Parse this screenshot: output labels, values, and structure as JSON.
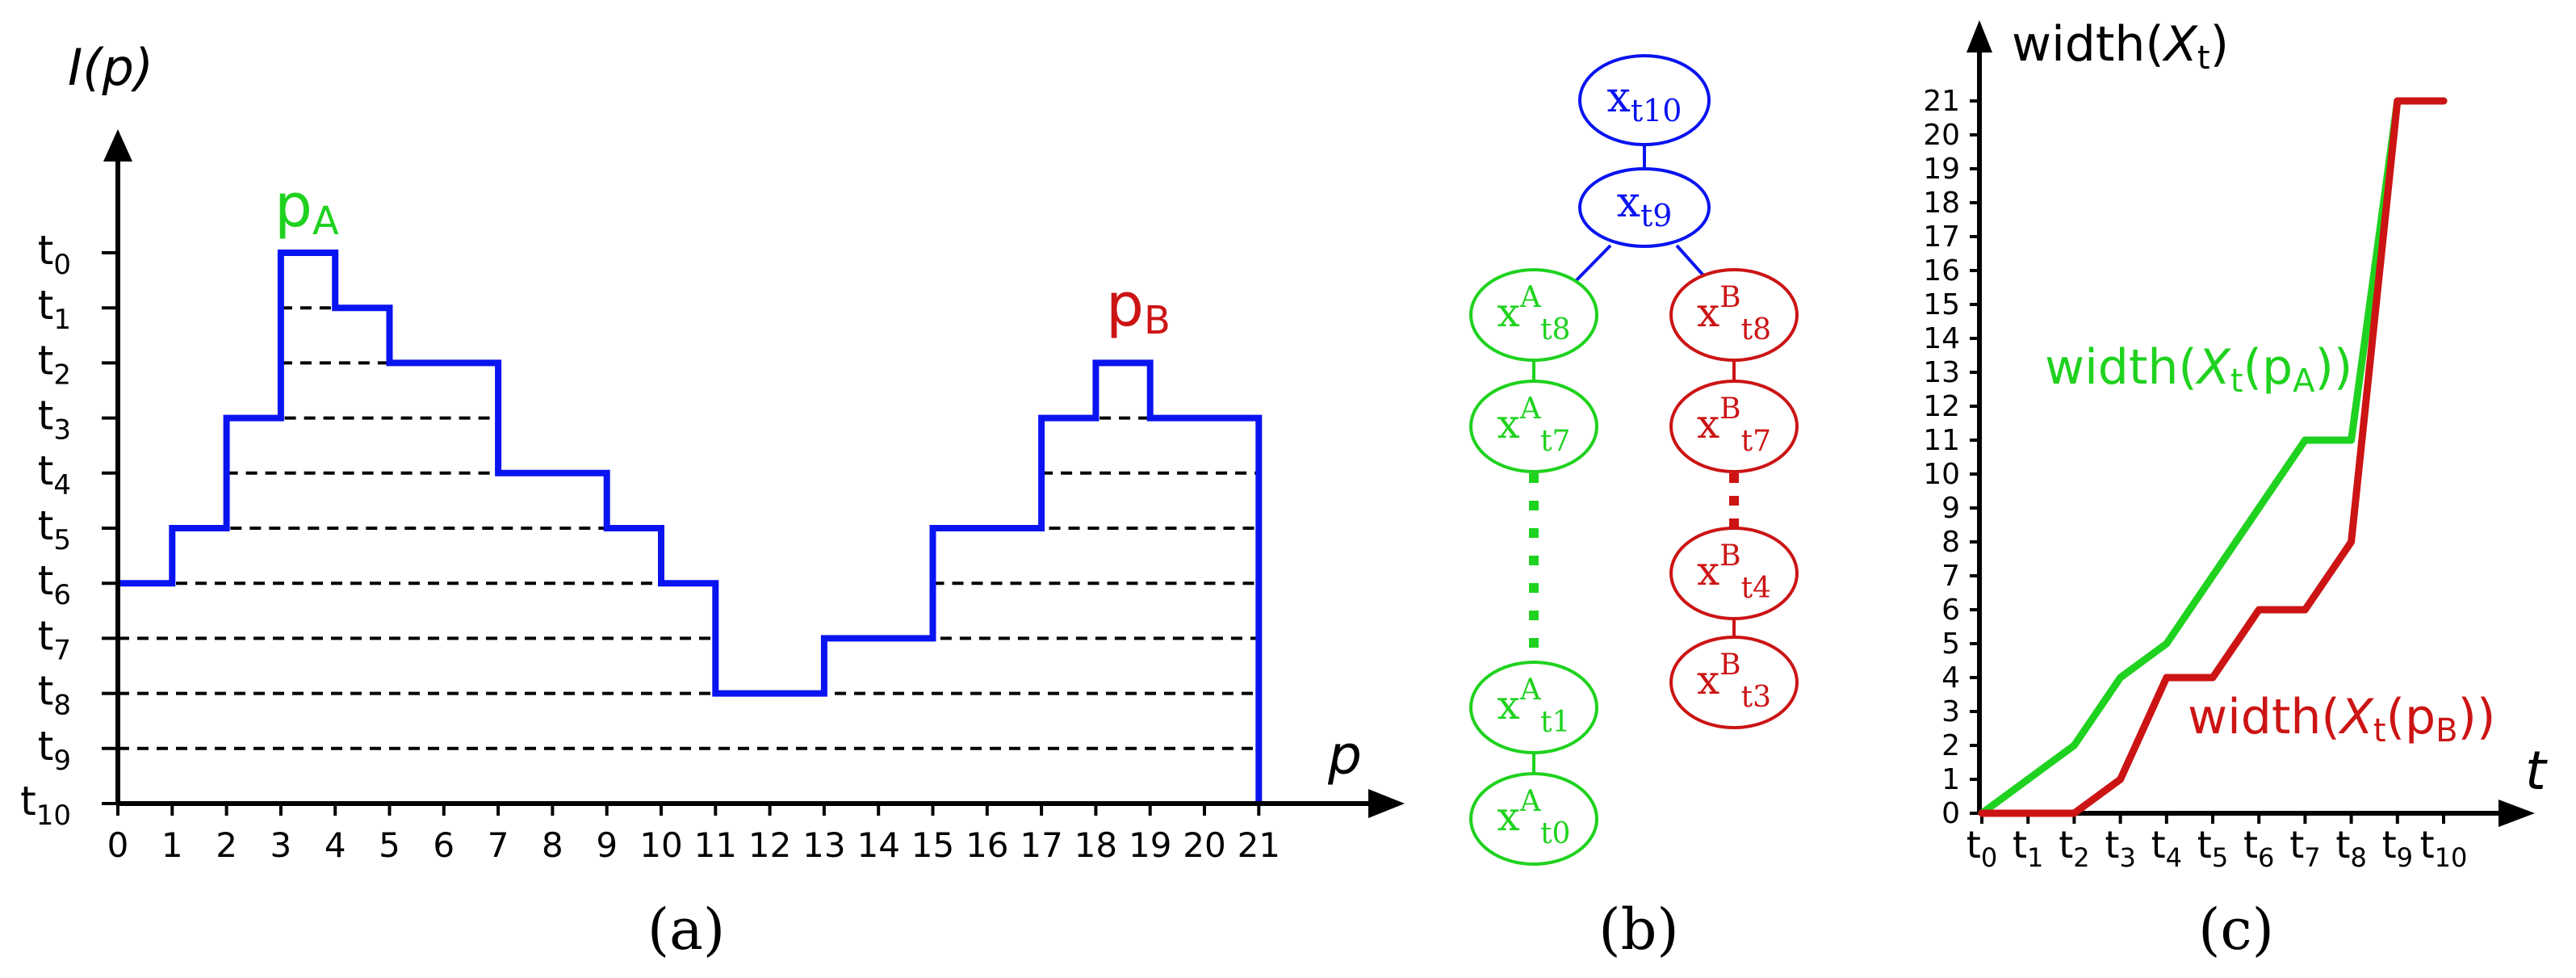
{
  "colors": {
    "blue": "#0a14f0",
    "green": "#1fd21f",
    "red": "#cc1414",
    "black": "#000000"
  },
  "panel_a": {
    "ylabel": "I(p)",
    "xlabel": "p",
    "peak_a_base": "p",
    "peak_a_sub": "A",
    "peak_b_base": "p",
    "peak_b_sub": "B",
    "x_ticks": [
      "0",
      "1",
      "2",
      "3",
      "4",
      "5",
      "6",
      "7",
      "8",
      "9",
      "10",
      "11",
      "12",
      "13",
      "14",
      "15",
      "16",
      "17",
      "18",
      "19",
      "20",
      "21"
    ],
    "t_levels": [
      {
        "base": "t",
        "sub": "0"
      },
      {
        "base": "t",
        "sub": "1"
      },
      {
        "base": "t",
        "sub": "2"
      },
      {
        "base": "t",
        "sub": "3"
      },
      {
        "base": "t",
        "sub": "4"
      },
      {
        "base": "t",
        "sub": "5"
      },
      {
        "base": "t",
        "sub": "6"
      },
      {
        "base": "t",
        "sub": "7"
      },
      {
        "base": "t",
        "sub": "8"
      },
      {
        "base": "t",
        "sub": "9"
      },
      {
        "base": "t",
        "sub": "10"
      }
    ],
    "profile_x": [
      0,
      1,
      2,
      3,
      4,
      5,
      7,
      9,
      10,
      11,
      13,
      15,
      17,
      18,
      19,
      21
    ],
    "profile_level": [
      6,
      5,
      3,
      0,
      1,
      2,
      4,
      5,
      6,
      8,
      7,
      5,
      3,
      2,
      3,
      10
    ],
    "caption": "(a)"
  },
  "panel_b": {
    "top_nodes": [
      {
        "base": "x",
        "sup": "",
        "sub": "t10"
      },
      {
        "base": "x",
        "sup": "",
        "sub": "t9"
      }
    ],
    "green_nodes": [
      {
        "base": "x",
        "sup": "A",
        "sub": "t8"
      },
      {
        "base": "x",
        "sup": "A",
        "sub": "t7"
      },
      {
        "base": "x",
        "sup": "A",
        "sub": "t1"
      },
      {
        "base": "x",
        "sup": "A",
        "sub": "t0"
      }
    ],
    "red_nodes": [
      {
        "base": "x",
        "sup": "B",
        "sub": "t8"
      },
      {
        "base": "x",
        "sup": "B",
        "sub": "t7"
      },
      {
        "base": "x",
        "sup": "B",
        "sub": "t4"
      },
      {
        "base": "x",
        "sup": "B",
        "sub": "t3"
      }
    ],
    "caption": "(b)"
  },
  "panel_c": {
    "ylabel_pre": "width(",
    "ylabel_var": "X",
    "ylabel_sub": "t",
    "ylabel_post": ")",
    "xlabel": "t",
    "y_ticks": [
      "0",
      "1",
      "2",
      "3",
      "4",
      "5",
      "6",
      "7",
      "8",
      "9",
      "10",
      "11",
      "12",
      "13",
      "14",
      "15",
      "16",
      "17",
      "18",
      "19",
      "20",
      "21"
    ],
    "x_ticks": [
      {
        "base": "t",
        "sub": "0"
      },
      {
        "base": "t",
        "sub": "1"
      },
      {
        "base": "t",
        "sub": "2"
      },
      {
        "base": "t",
        "sub": "3"
      },
      {
        "base": "t",
        "sub": "4"
      },
      {
        "base": "t",
        "sub": "5"
      },
      {
        "base": "t",
        "sub": "6"
      },
      {
        "base": "t",
        "sub": "7"
      },
      {
        "base": "t",
        "sub": "8"
      },
      {
        "base": "t",
        "sub": "9"
      },
      {
        "base": "t",
        "sub": "10"
      }
    ],
    "series_a": {
      "pre": "width(",
      "var": "X",
      "sub": "t",
      "mid": "(p",
      "sub2": "A",
      "post": "))"
    },
    "series_b": {
      "pre": "width(",
      "var": "X",
      "sub": "t",
      "mid": "(p",
      "sub2": "B",
      "post": "))"
    },
    "caption": "(c)"
  },
  "chart_data": {
    "type": "line",
    "x": [
      "t0",
      "t1",
      "t2",
      "t3",
      "t4",
      "t5",
      "t6",
      "t7",
      "t8",
      "t9",
      "t10"
    ],
    "ylabel": "width(Xt)",
    "xlabel": "t",
    "ylim": [
      0,
      21
    ],
    "series": [
      {
        "name": "width(Xt(pA))",
        "values": [
          0,
          1,
          2,
          4,
          5,
          7,
          9,
          11,
          11,
          21,
          21
        ]
      },
      {
        "name": "width(Xt(pB))",
        "values": [
          0,
          0,
          0,
          1,
          4,
          4,
          6,
          6,
          8,
          21,
          21
        ]
      }
    ]
  }
}
